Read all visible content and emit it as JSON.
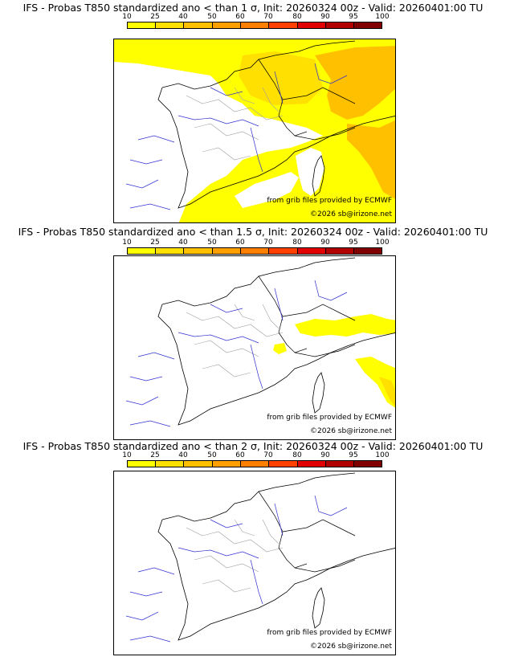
{
  "panels": [
    {
      "title": "IFS - Probas T850  standardized ano < than 1 σ, Init: 20260324 00z - Valid: 20260401:00 TU",
      "threshold_sigma": "1",
      "credit_grib": "from grib files provided by ECMWF",
      "credit_copy": "©2026 sb@irizone.net"
    },
    {
      "title": "IFS - Probas T850  standardized ano < than 1.5 σ, Init: 20260324 00z - Valid: 20260401:00 TU",
      "threshold_sigma": "1.5",
      "credit_grib": "from grib files provided by ECMWF",
      "credit_copy": "©2026 sb@irizone.net"
    },
    {
      "title": "IFS - Probas T850  standardized ano < than 2 σ, Init: 20260324 00z - Valid: 20260401:00 TU",
      "threshold_sigma": "2",
      "credit_grib": "from grib files provided by ECMWF",
      "credit_copy": "©2026 sb@irizone.net"
    }
  ],
  "colorbar": {
    "labels": [
      "10",
      "25",
      "40",
      "50",
      "60",
      "70",
      "80",
      "90",
      "95",
      "100"
    ],
    "colors": [
      "#ffff00",
      "#ffe000",
      "#ffc000",
      "#ffa000",
      "#ff8000",
      "#ff4000",
      "#e00000",
      "#b00000",
      "#800000"
    ]
  },
  "colors": {
    "coast": "#000000",
    "rivers": "#3030d0",
    "borders": "#a0a0a0",
    "prob_low": "#ffff00",
    "prob_mid": "#ffe000",
    "prob_high": "#ffc000"
  }
}
